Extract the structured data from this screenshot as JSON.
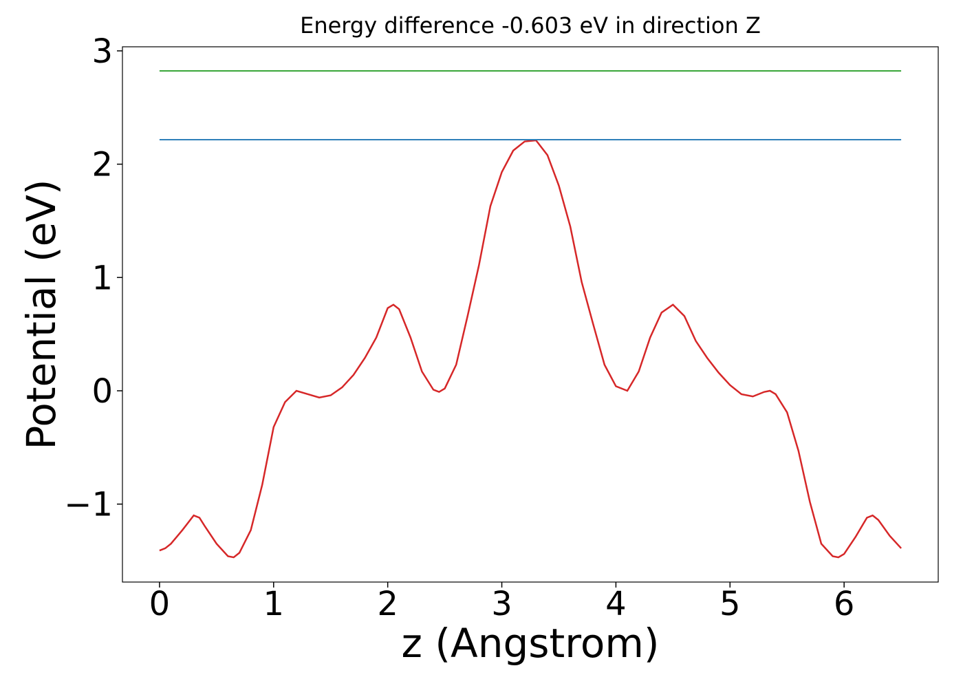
{
  "chart_data": {
    "type": "line",
    "title": "Energy difference -0.603 eV in direction Z",
    "x_label": "z (Angstrom)",
    "y_label": "Potential (eV)",
    "xlim": [
      -0.325,
      6.825
    ],
    "ylim": [
      -1.688,
      3.036
    ],
    "xticks": [
      0,
      1,
      2,
      3,
      4,
      5,
      6
    ],
    "yticks": [
      {
        "value": -1,
        "label": "−1"
      },
      0,
      1,
      2,
      3
    ],
    "series": [
      {
        "color": "#d62728",
        "x": [
          0,
          0.05,
          0.1,
          0.2,
          0.3,
          0.35,
          0.4,
          0.5,
          0.6,
          0.65,
          0.7,
          0.8,
          0.9,
          1.0,
          1.1,
          1.2,
          1.3,
          1.4,
          1.5,
          1.6,
          1.7,
          1.8,
          1.9,
          2.0,
          2.05,
          2.1,
          2.2,
          2.3,
          2.4,
          2.45,
          2.5,
          2.6,
          2.7,
          2.8,
          2.9,
          3.0,
          3.1,
          3.2,
          3.3,
          3.4,
          3.5,
          3.6,
          3.7,
          3.8,
          3.9,
          4.0,
          4.1,
          4.2,
          4.3,
          4.4,
          4.5,
          4.6,
          4.7,
          4.8,
          4.9,
          5.0,
          5.1,
          5.2,
          5.3,
          5.35,
          5.4,
          5.5,
          5.6,
          5.7,
          5.8,
          5.9,
          5.95,
          6.0,
          6.1,
          6.2,
          6.25,
          6.3,
          6.4,
          6.5
        ],
        "values": [
          -1.41,
          -1.39,
          -1.35,
          -1.23,
          -1.1,
          -1.12,
          -1.2,
          -1.35,
          -1.46,
          -1.47,
          -1.43,
          -1.23,
          -0.83,
          -0.32,
          -0.1,
          0.0,
          -0.03,
          -0.06,
          -0.04,
          0.03,
          0.14,
          0.29,
          0.47,
          0.73,
          0.76,
          0.72,
          0.47,
          0.17,
          0.01,
          -0.01,
          0.02,
          0.23,
          0.66,
          1.11,
          1.63,
          1.93,
          2.12,
          2.2,
          2.21,
          2.08,
          1.81,
          1.45,
          0.96,
          0.59,
          0.23,
          0.04,
          0.0,
          0.17,
          0.47,
          0.69,
          0.76,
          0.66,
          0.44,
          0.29,
          0.16,
          0.05,
          -0.03,
          -0.05,
          -0.01,
          0.0,
          -0.03,
          -0.19,
          -0.53,
          -0.98,
          -1.35,
          -1.46,
          -1.47,
          -1.44,
          -1.29,
          -1.12,
          -1.1,
          -1.14,
          -1.28,
          -1.39
        ]
      },
      {
        "color": "#1f77b4",
        "x": [
          0,
          6.5
        ],
        "values": [
          2.216,
          2.216
        ]
      },
      {
        "color": "#2ca02c",
        "x": [
          0,
          6.5
        ],
        "values": [
          2.823,
          2.823
        ]
      }
    ]
  }
}
